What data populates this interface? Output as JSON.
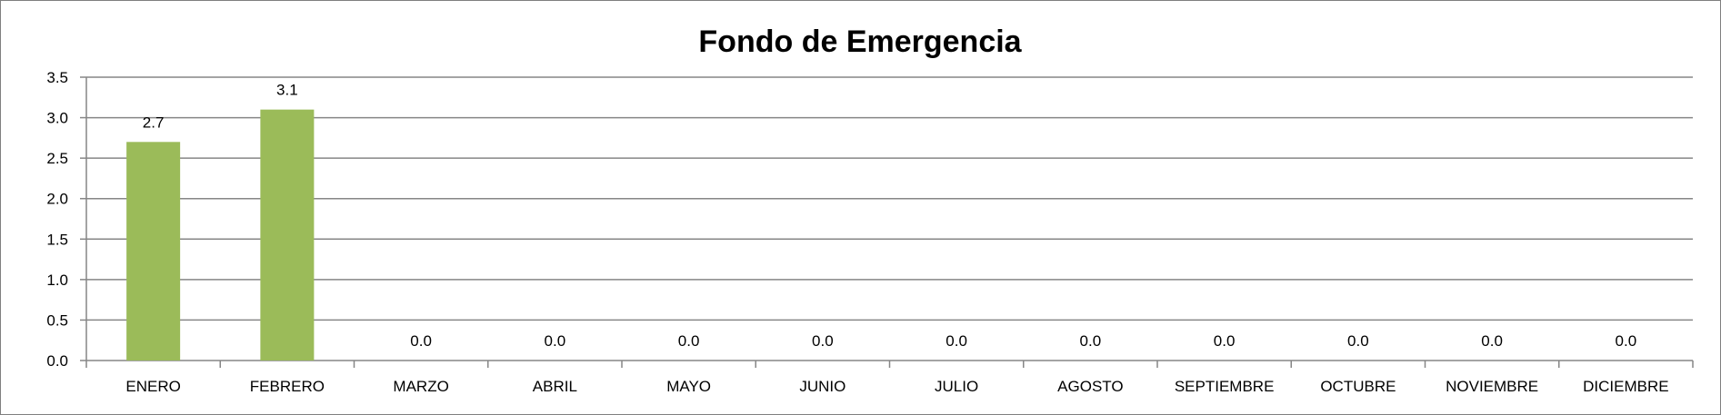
{
  "chart_data": {
    "type": "bar",
    "title": "Fondo de Emergencia",
    "categories": [
      "ENERO",
      "FEBRERO",
      "MARZO",
      "ABRIL",
      "MAYO",
      "JUNIO",
      "JULIO",
      "AGOSTO",
      "SEPTIEMBRE",
      "OCTUBRE",
      "NOVIEMBRE",
      "DICIEMBRE"
    ],
    "values": [
      2.7,
      3.1,
      0.0,
      0.0,
      0.0,
      0.0,
      0.0,
      0.0,
      0.0,
      0.0,
      0.0,
      0.0
    ],
    "data_labels": [
      "2.7",
      "3.1",
      "0.0",
      "0.0",
      "0.0",
      "0.0",
      "0.0",
      "0.0",
      "0.0",
      "0.0",
      "0.0",
      "0.0"
    ],
    "yticks": [
      "0.0",
      "0.5",
      "1.0",
      "1.5",
      "2.0",
      "2.5",
      "3.0",
      "3.5"
    ],
    "ylim": [
      0,
      3.5
    ],
    "grid": true,
    "legend": "none",
    "bar_color": "#9bbb59",
    "gridline_color": "#868686"
  }
}
